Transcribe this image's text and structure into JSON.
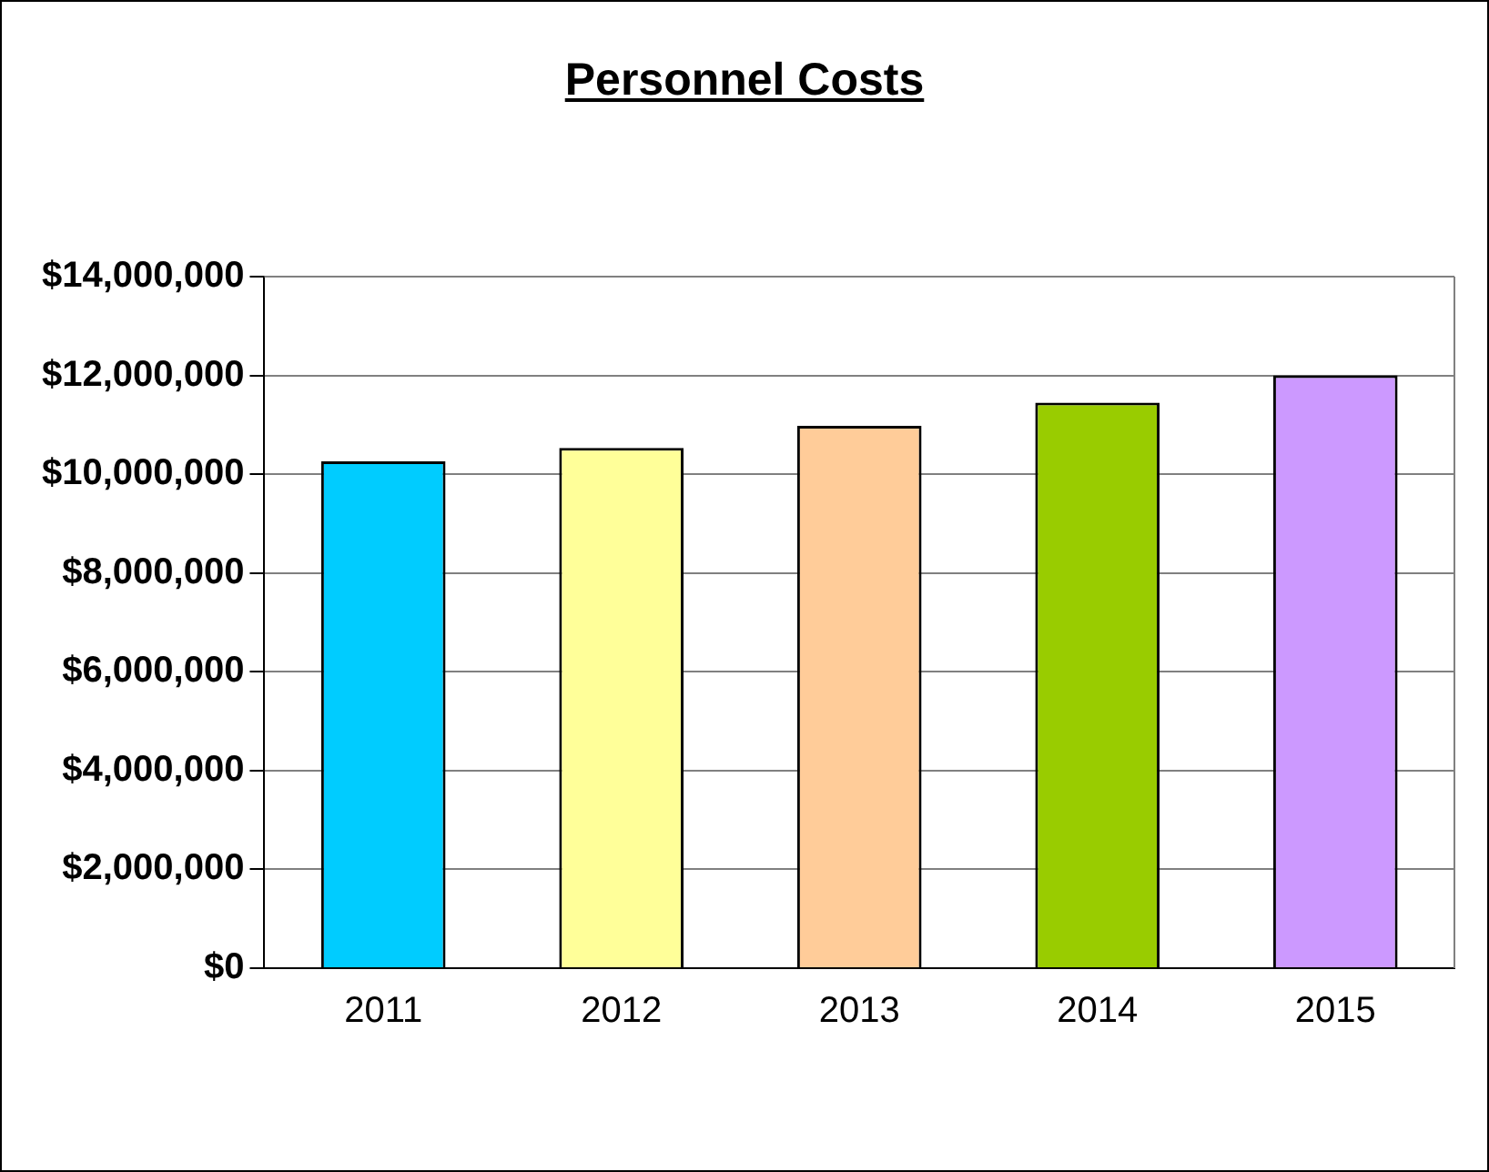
{
  "chart_data": {
    "type": "bar",
    "title": "Personnel Costs",
    "categories": [
      "2011",
      "2012",
      "2013",
      "2014",
      "2015"
    ],
    "values": [
      10260000,
      10530000,
      10980000,
      11450000,
      12000000
    ],
    "colors": [
      "#00ccff",
      "#ffff99",
      "#ffcc99",
      "#99cc00",
      "#cc99ff"
    ],
    "ylim": [
      0,
      14000000
    ],
    "yticks": [
      {
        "value": 0,
        "label": "$0"
      },
      {
        "value": 2000000,
        "label": "$2,000,000"
      },
      {
        "value": 4000000,
        "label": "$4,000,000"
      },
      {
        "value": 6000000,
        "label": "$6,000,000"
      },
      {
        "value": 8000000,
        "label": "$8,000,000"
      },
      {
        "value": 10000000,
        "label": "$10,000,000"
      },
      {
        "value": 12000000,
        "label": "$12,000,000"
      },
      {
        "value": 14000000,
        "label": "$14,000,000"
      }
    ],
    "grid": "y",
    "legend": false
  }
}
